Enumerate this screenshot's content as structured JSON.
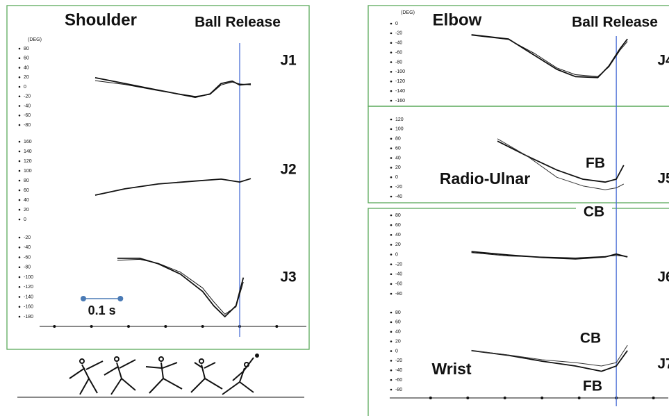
{
  "chart_data": [
    {
      "type": "line",
      "title": "Shoulder",
      "annotation": "Ball Release",
      "y_unit": "(DEG)",
      "scale_bar": 0.1,
      "scale_label": "0.1 s",
      "release": 0,
      "xlim": [
        -0.54,
        0.18
      ],
      "xticks": [
        -0.5,
        -0.4,
        -0.3,
        -0.2,
        -0.1,
        0,
        0.1
      ],
      "panels": [
        {
          "label": "J1",
          "ylim": [
            -80,
            80
          ],
          "yticks": [
            80,
            60,
            40,
            20,
            0,
            -20,
            -40,
            -60,
            -80
          ],
          "x": [
            -0.39,
            -0.31,
            -0.22,
            -0.12,
            -0.08,
            -0.05,
            -0.02,
            0,
            0.03
          ],
          "series": [
            {
              "color": "#111",
              "values": [
                19,
                7,
                -7,
                -22,
                -15,
                7,
                12,
                4,
                6
              ]
            },
            {
              "color": "#111",
              "values": [
                13,
                5,
                -8,
                -20,
                -16,
                4,
                10,
                6,
                4
              ]
            }
          ]
        },
        {
          "label": "J2",
          "ylim": [
            0,
            160
          ],
          "yticks": [
            160,
            140,
            120,
            100,
            80,
            60,
            40,
            20,
            0
          ],
          "x": [
            -0.39,
            -0.31,
            -0.22,
            -0.12,
            -0.05,
            0,
            0.03
          ],
          "series": [
            {
              "color": "#111",
              "values": [
                50,
                63,
                73,
                79,
                83,
                77,
                84
              ]
            }
          ]
        },
        {
          "label": "J3",
          "ylim": [
            -180,
            -20
          ],
          "yticks": [
            -20,
            -40,
            -60,
            -80,
            -100,
            -120,
            -140,
            -160,
            -180
          ],
          "x": [
            -0.33,
            -0.27,
            -0.22,
            -0.16,
            -0.1,
            -0.07,
            -0.04,
            -0.01,
            0.01
          ],
          "series": [
            {
              "color": "#111",
              "values": [
                -62,
                -62,
                -73,
                -94,
                -129,
                -158,
                -180,
                -158,
                -101
              ]
            },
            {
              "color": "#111",
              "values": [
                -66,
                -64,
                -72,
                -90,
                -122,
                -150,
                -175,
                -160,
                -110
              ]
            }
          ]
        }
      ]
    },
    {
      "type": "line",
      "title": "Elbow",
      "annotation": "Ball Release",
      "y_unit": "(DEG)",
      "release": 0,
      "xlim": [
        -0.61,
        0.14
      ],
      "xticks": [
        -0.5,
        -0.4,
        -0.3,
        -0.2,
        -0.1,
        0,
        0.1
      ],
      "panels": [
        {
          "label": "J4",
          "ylim": [
            -160,
            0
          ],
          "yticks": [
            0,
            -20,
            -40,
            -60,
            -80,
            -100,
            -120,
            -140,
            -160
          ],
          "x": [
            -0.39,
            -0.29,
            -0.22,
            -0.16,
            -0.11,
            -0.05,
            -0.02,
            0.01,
            0.03
          ],
          "series": [
            {
              "color": "#111",
              "values": [
                -23,
                -32,
                -66,
                -95,
                -110,
                -112,
                -88,
                -52,
                -32
              ]
            },
            {
              "color": "#111",
              "values": [
                -24,
                -33,
                -62,
                -92,
                -106,
                -110,
                -90,
                -55,
                -37
              ]
            }
          ]
        },
        {
          "label": "J5",
          "joint": "Radio-Ulnar",
          "ylim": [
            -40,
            120
          ],
          "yticks": [
            120,
            100,
            80,
            60,
            40,
            20,
            0,
            -20,
            -40
          ],
          "x": [
            -0.32,
            -0.24,
            -0.16,
            -0.09,
            -0.03,
            0,
            0.02
          ],
          "series": [
            {
              "name": "FB",
              "color": "#111",
              "values": [
                75,
                44,
                15,
                -4,
                -10,
                -4,
                25
              ]
            },
            {
              "name": "CB",
              "color": "#333",
              "values": [
                80,
                44,
                0,
                -18,
                -26,
                -22,
                -14
              ]
            }
          ]
        },
        {
          "label": "J6",
          "ylim": [
            -80,
            80
          ],
          "yticks": [
            80,
            60,
            40,
            20,
            0,
            -20,
            -40,
            -60,
            -80
          ],
          "x": [
            -0.39,
            -0.29,
            -0.2,
            -0.11,
            -0.03,
            0,
            0.03
          ],
          "series": [
            {
              "color": "#111",
              "values": [
                6,
                -1,
                -6,
                -9,
                -5,
                1,
                -5
              ]
            },
            {
              "color": "#111",
              "values": [
                4,
                -3,
                -5,
                -7,
                -4,
                -2,
                -4
              ]
            }
          ]
        },
        {
          "label": "J7",
          "joint": "Wrist",
          "ylim": [
            -80,
            80
          ],
          "yticks": [
            80,
            60,
            40,
            20,
            0,
            -20,
            -40,
            -60,
            -80
          ],
          "x": [
            -0.39,
            -0.29,
            -0.2,
            -0.11,
            -0.04,
            0,
            0.03
          ],
          "series": [
            {
              "name": "FB",
              "color": "#111",
              "values": [
                1,
                -9,
                -21,
                -31,
                -42,
                -31,
                1
              ]
            },
            {
              "name": "CB",
              "color": "#333",
              "values": [
                1,
                -8,
                -18,
                -24,
                -31,
                -24,
                12
              ]
            }
          ]
        }
      ]
    }
  ]
}
